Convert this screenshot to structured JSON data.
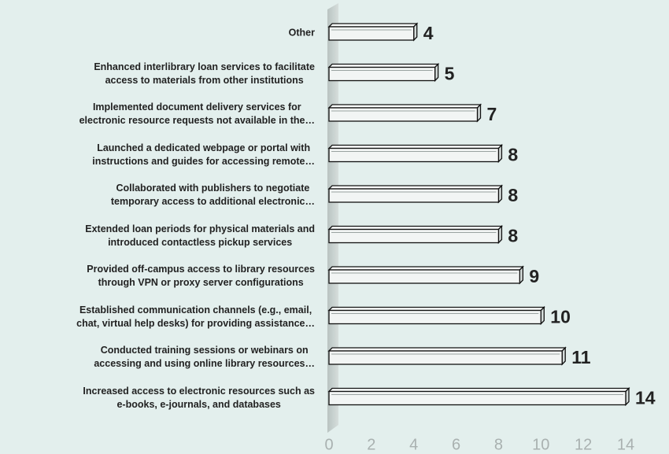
{
  "chart_data": {
    "type": "bar",
    "orientation": "horizontal",
    "categories": [
      "Other",
      "Enhanced interlibrary loan services to facilitate\naccess to materials from other institutions",
      "Implemented document delivery services for\nelectronic resource requests not available in the…",
      "Launched a dedicated webpage or portal with\ninstructions and guides for accessing remote…",
      "Collaborated with publishers to negotiate\ntemporary access to additional electronic…",
      "Extended loan periods for physical materials and\nintroduced contactless pickup services",
      "Provided off-campus access to library resources\nthrough VPN or proxy server configurations",
      "Established communication channels (e.g., email,\nchat, virtual help desks) for providing assistance…",
      "Conducted training sessions or webinars on\naccessing and using online library resources…",
      "Increased access to electronic resources such as\ne-books, e-journals, and databases"
    ],
    "values": [
      4,
      5,
      7,
      8,
      8,
      8,
      9,
      10,
      11,
      14
    ],
    "color": "#f2f5f4",
    "xlim": [
      0,
      14
    ],
    "xticks": [
      0,
      2,
      4,
      6,
      8,
      10,
      12,
      14
    ]
  }
}
